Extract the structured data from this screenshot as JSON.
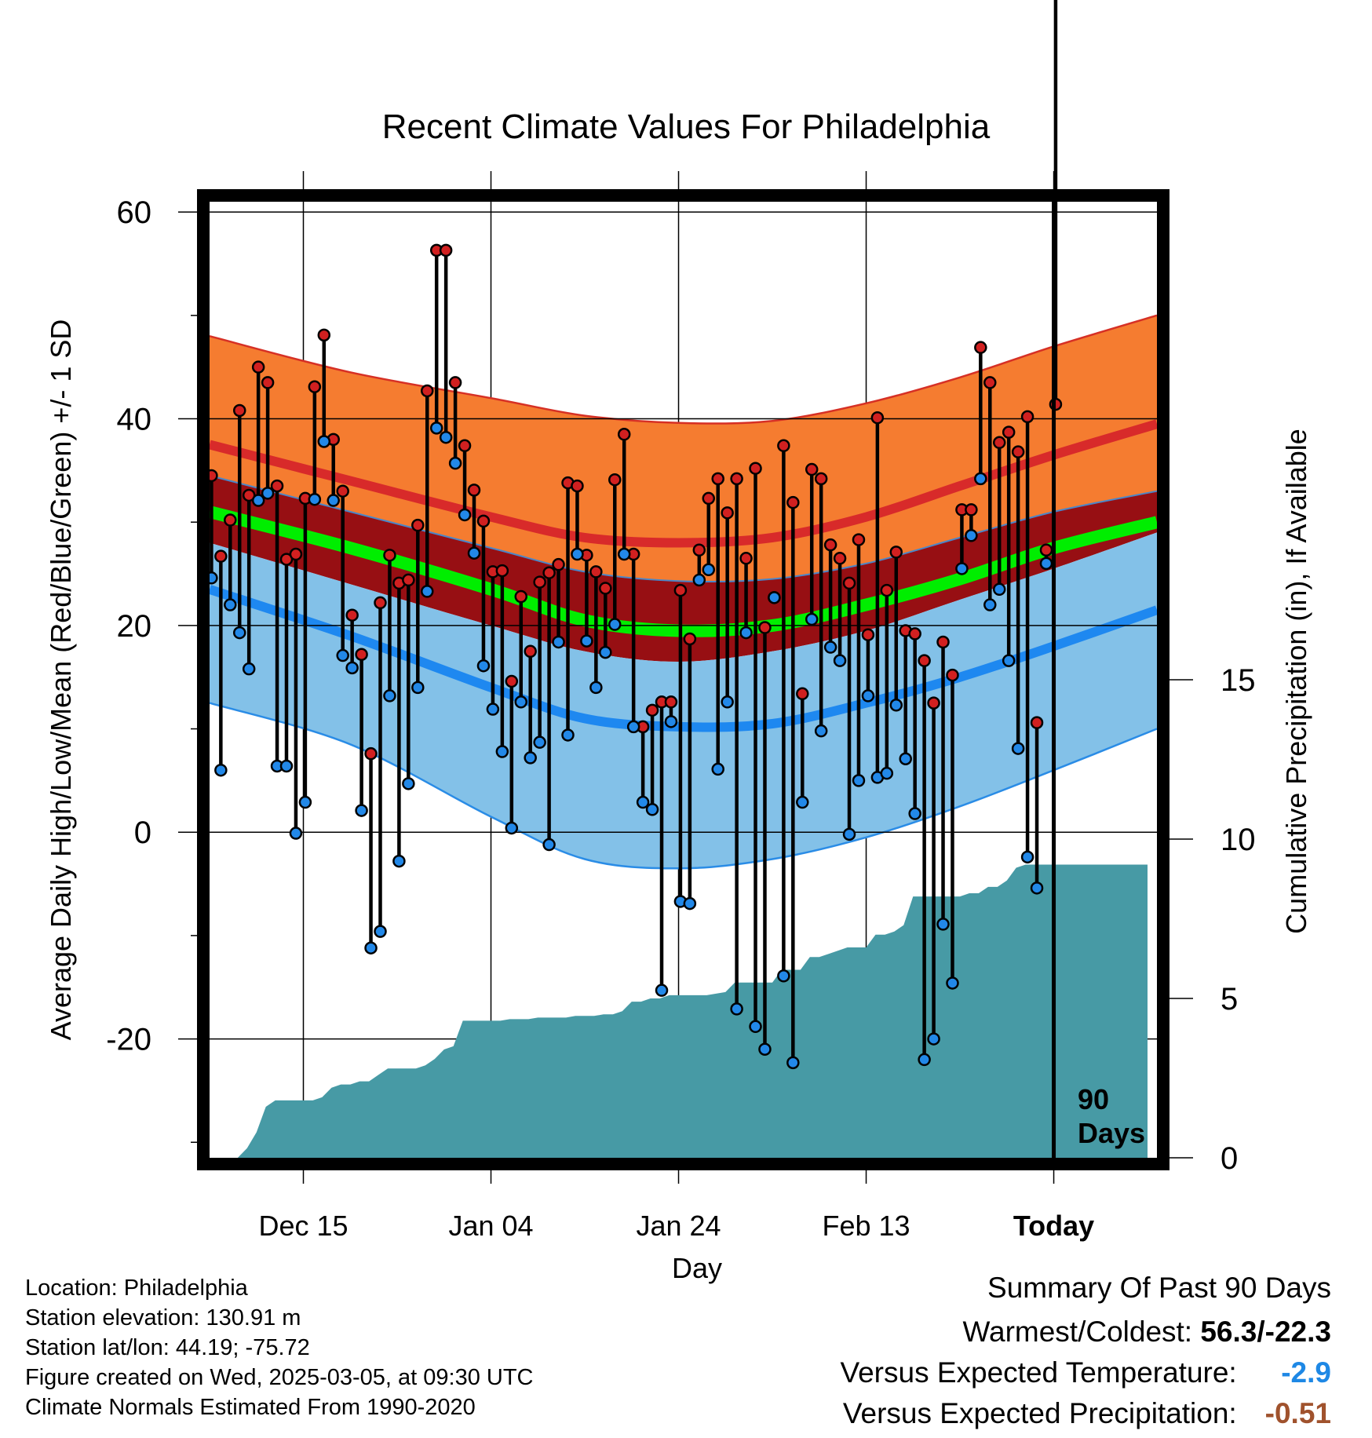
{
  "chart_data": {
    "type": "line",
    "title": "Recent Climate Values For Philadelphia",
    "xlabel": "Day",
    "ylabel": "Average Daily High/Low/Mean (Red/Blue/Green) +/- 1 SD",
    "y2label": "Cumulative Precipitation (in), If Available",
    "ylim": [
      -31.5,
      61
    ],
    "y_ticks": [
      "60",
      "40",
      "20",
      "0",
      "-20"
    ],
    "y_tick_values": [
      60,
      40,
      20,
      0,
      -20
    ],
    "y2lim": [
      0,
      30
    ],
    "y2_ticks": [
      "0",
      "5",
      "10",
      "15"
    ],
    "y2_tick_values": [
      0,
      5,
      10,
      15
    ],
    "x_day_range": [
      0,
      101
    ],
    "x_tick_labels": [
      "Dec 15",
      "Jan 04",
      "Jan 24",
      "Feb 13",
      "Today"
    ],
    "x_tick_days": [
      10,
      30,
      50,
      70,
      90
    ],
    "today_label": "90",
    "today_label2": "Days",
    "today_day": 90,
    "normals_days": [
      0,
      15,
      30,
      40,
      50,
      60,
      70,
      80,
      90,
      101
    ],
    "normal_high_upper": [
      48,
      44.5,
      42,
      40.3,
      39.6,
      39.8,
      41.5,
      44,
      47,
      50
    ],
    "normal_high": [
      37.5,
      34,
      30.5,
      28.5,
      28,
      28.5,
      30.5,
      33.5,
      36.5,
      39.5
    ],
    "normal_high_lower": [
      34.5,
      31,
      27.5,
      25.2,
      24.3,
      24.5,
      26,
      28.5,
      31,
      33
    ],
    "normal_mean": [
      31,
      27.5,
      23.5,
      20.5,
      19.5,
      20,
      22,
      24.5,
      27.5,
      30
    ],
    "normal_low_upper": [
      28,
      24,
      20,
      17.5,
      16.5,
      17.5,
      19.5,
      22.5,
      25.5,
      29
    ],
    "normal_low": [
      23.5,
      19,
      14,
      11,
      10.2,
      10.5,
      12.5,
      15,
      18,
      21.5
    ],
    "normal_low_lower": [
      12.5,
      8.5,
      1.5,
      -2.6,
      -3.5,
      -2.6,
      -0.5,
      2.5,
      6,
      10
    ],
    "series": [
      {
        "name": "High",
        "color": "#d12020",
        "values": [
          34.5,
          26.7,
          30.2,
          40.8,
          32.6,
          45.0,
          43.5,
          33.5,
          26.4,
          26.9,
          32.3,
          43.1,
          48.1,
          38.0,
          33.0,
          21.0,
          17.2,
          7.6,
          22.2,
          26.8,
          24.1,
          24.4,
          29.7,
          42.7,
          56.3,
          56.3,
          43.5,
          37.4,
          33.1,
          30.1,
          25.2,
          25.3,
          14.6,
          22.8,
          17.5,
          24.2,
          25.1,
          25.9,
          33.8,
          33.5,
          26.8,
          25.2,
          23.6,
          34.1,
          38.5,
          26.9,
          10.2,
          11.8,
          12.6,
          12.6,
          23.4,
          18.7,
          27.3,
          32.3,
          34.2,
          30.9,
          34.2,
          26.5,
          35.2,
          19.8,
          22.7,
          37.4,
          31.9,
          13.4,
          35.1,
          34.2,
          27.8,
          26.5,
          24.1,
          28.3,
          19.1,
          40.1,
          23.4,
          27.1,
          19.5,
          19.2,
          16.6,
          12.5,
          18.4,
          15.2,
          31.2,
          31.2,
          46.9,
          43.5,
          37.7,
          38.7,
          36.8,
          40.2,
          10.6,
          27.3,
          41.4
        ]
      },
      {
        "name": "Low",
        "color": "#2288e8",
        "values": [
          24.6,
          6.0,
          22.0,
          19.3,
          15.8,
          32.1,
          32.8,
          6.4,
          6.4,
          -0.1,
          2.9,
          32.2,
          37.8,
          32.1,
          17.1,
          15.9,
          2.1,
          -11.2,
          -9.6,
          13.2,
          -2.8,
          4.7,
          14.0,
          23.3,
          39.1,
          38.2,
          35.7,
          30.7,
          27.0,
          16.1,
          11.9,
          7.8,
          0.4,
          12.6,
          7.2,
          8.7,
          -1.2,
          18.4,
          9.4,
          26.9,
          18.5,
          14.0,
          17.4,
          20.1,
          26.9,
          10.2,
          2.9,
          2.2,
          -15.3,
          10.7,
          -6.7,
          -6.9,
          24.4,
          25.4,
          6.1,
          12.6,
          -17.1,
          19.3,
          -18.8,
          -21.0,
          22.7,
          -13.9,
          -22.3,
          2.9,
          20.6,
          9.8,
          17.9,
          16.6,
          -0.2,
          5.0,
          13.2,
          5.3,
          5.7,
          12.3,
          7.1,
          1.8,
          -22.0,
          -20.0,
          -8.9,
          -14.6,
          25.5,
          28.7,
          34.2,
          22.0,
          23.5,
          16.6,
          8.1,
          -2.4,
          -5.4,
          26.0
        ]
      },
      {
        "name": "Cumulative Precipitation",
        "color": "#479aa5",
        "values": [
          0.0,
          0.0,
          0.0,
          0.0,
          0.3,
          0.8,
          1.6,
          1.8,
          1.8,
          1.8,
          1.8,
          1.8,
          1.9,
          2.2,
          2.3,
          2.3,
          2.4,
          2.4,
          2.6,
          2.8,
          2.8,
          2.8,
          2.8,
          2.9,
          3.1,
          3.4,
          3.5,
          4.3,
          4.3,
          4.3,
          4.3,
          4.3,
          4.35,
          4.35,
          4.35,
          4.4,
          4.4,
          4.4,
          4.4,
          4.45,
          4.45,
          4.45,
          4.5,
          4.5,
          4.6,
          4.9,
          4.9,
          5.0,
          5.0,
          5.1,
          5.1,
          5.1,
          5.1,
          5.1,
          5.15,
          5.2,
          5.5,
          5.5,
          5.5,
          5.5,
          5.5,
          5.9,
          5.9,
          5.9,
          6.3,
          6.3,
          6.4,
          6.5,
          6.6,
          6.6,
          6.6,
          7.0,
          7.0,
          7.1,
          7.3,
          8.2,
          8.2,
          8.2,
          8.2,
          8.2,
          8.2,
          8.3,
          8.3,
          8.5,
          8.5,
          8.7,
          9.1,
          9.2,
          9.2,
          9.2,
          9.2,
          9.2,
          9.2,
          9.2,
          9.2,
          9.2,
          9.2,
          9.2,
          9.2,
          9.2,
          9.2
        ]
      }
    ]
  },
  "info": {
    "location": "Location: Philadelphia",
    "elevation": "Station elevation: 130.91 m",
    "latlon": "Station lat/lon: 44.19; -75.72",
    "created": "Figure created on Wed, 2025-03-05, at 09:30 UTC",
    "normals": "Climate Normals Estimated From 1990-2020"
  },
  "summary": {
    "heading": "Summary Of Past 90 Days",
    "warm_cold_label": "Warmest/Coldest:",
    "warm_cold_value": "56.3/-22.3",
    "temp_label": "Versus Expected Temperature:",
    "temp_value": "-2.9",
    "temp_color": "#1e88e5",
    "precip_label": "Versus Expected Precipitation:",
    "precip_value": "-0.51",
    "precip_color": "#a0522d"
  }
}
